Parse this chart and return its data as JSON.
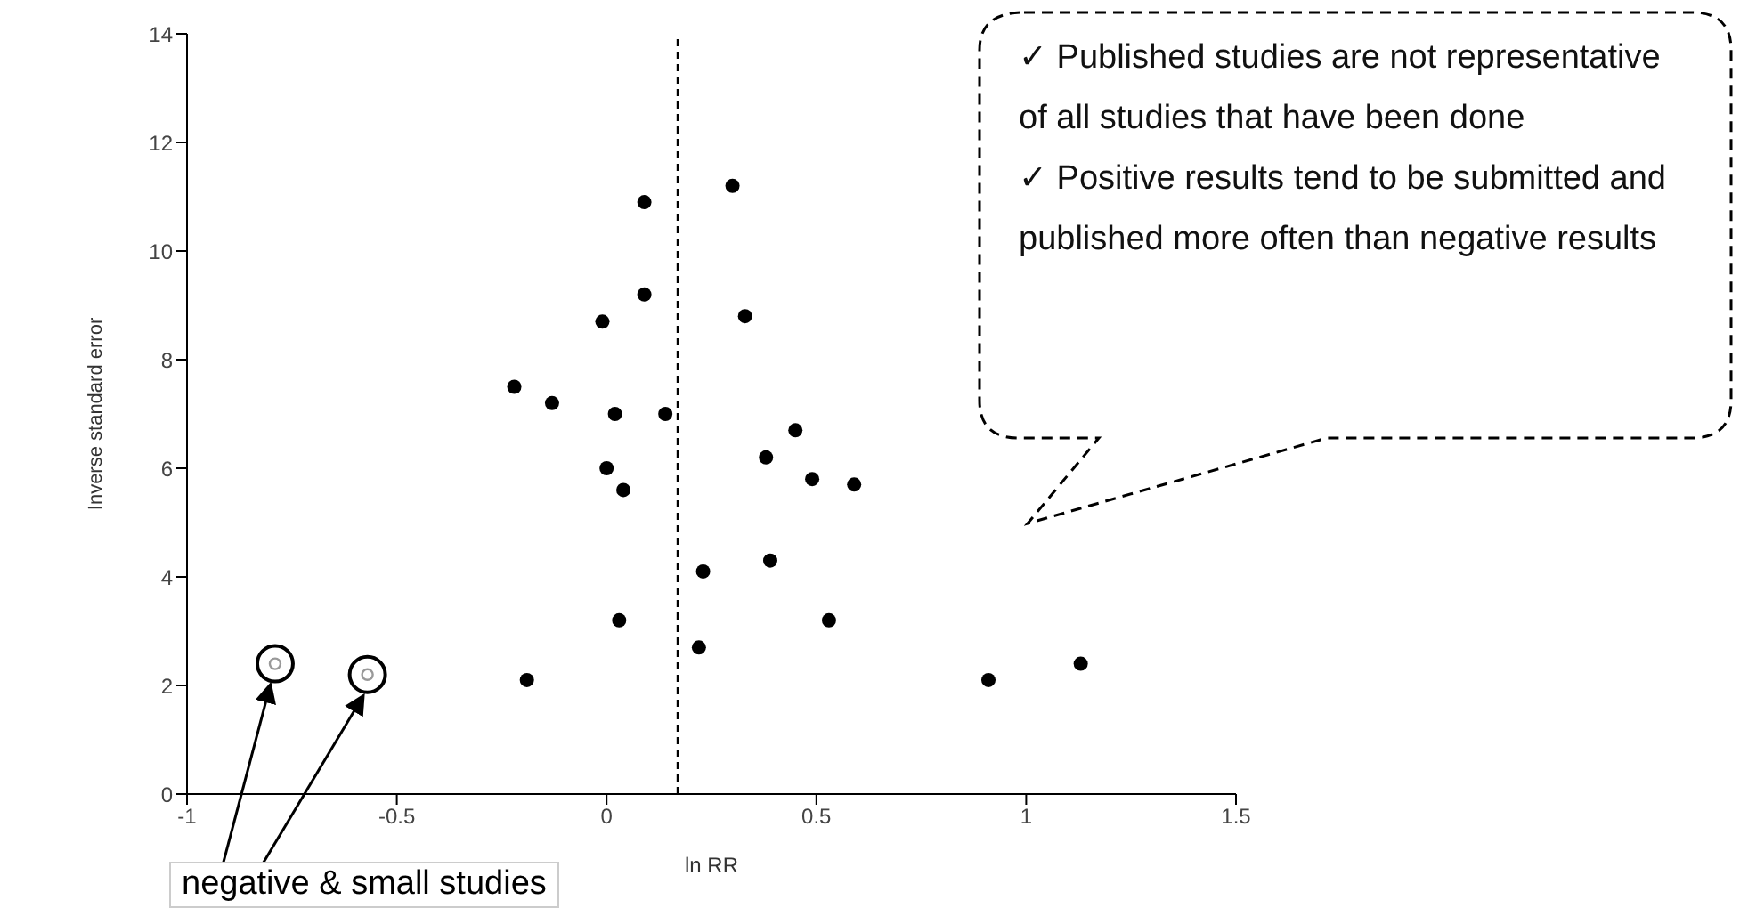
{
  "chart_data": {
    "type": "scatter",
    "xlabel": "ln RR",
    "ylabel": "Inverse standard error",
    "xlim": [
      -1,
      1.5
    ],
    "xticks": [
      -1,
      -0.5,
      0,
      0.5,
      1,
      1.5
    ],
    "ylim": [
      0,
      14
    ],
    "yticks": [
      0,
      2,
      4,
      6,
      8,
      10,
      12,
      14
    ],
    "marker": "circle",
    "series": [
      {
        "color": "#000000",
        "x": [
          0.09,
          0.3,
          0.09,
          -0.01,
          0.33,
          -0.22,
          -0.13,
          0.02,
          0.14,
          0.45,
          0.38,
          0.0,
          0.04,
          0.49,
          0.59,
          0.23,
          0.39,
          0.03,
          0.53,
          0.22,
          -0.19,
          0.91,
          1.13
        ],
        "values": [
          10.9,
          11.2,
          9.2,
          8.7,
          8.8,
          7.5,
          7.2,
          7.0,
          7.0,
          6.7,
          6.2,
          6.0,
          5.6,
          5.8,
          5.7,
          4.1,
          4.3,
          3.2,
          3.2,
          2.7,
          2.1,
          2.1,
          2.4
        ]
      },
      {
        "color": "#999999",
        "x": [
          -0.79,
          -0.57
        ],
        "values": [
          2.4,
          2.2
        ]
      }
    ],
    "ref_lines": [
      {
        "axis": "x",
        "value": 0.17,
        "line_style": "dashed",
        "color": "#000000"
      }
    ],
    "annotations": [
      "✓ Published studies are not representative of all studies that have been done",
      "✓ Positive results tend to be submitted and published more often than negative results",
      "negative & small studies"
    ]
  }
}
